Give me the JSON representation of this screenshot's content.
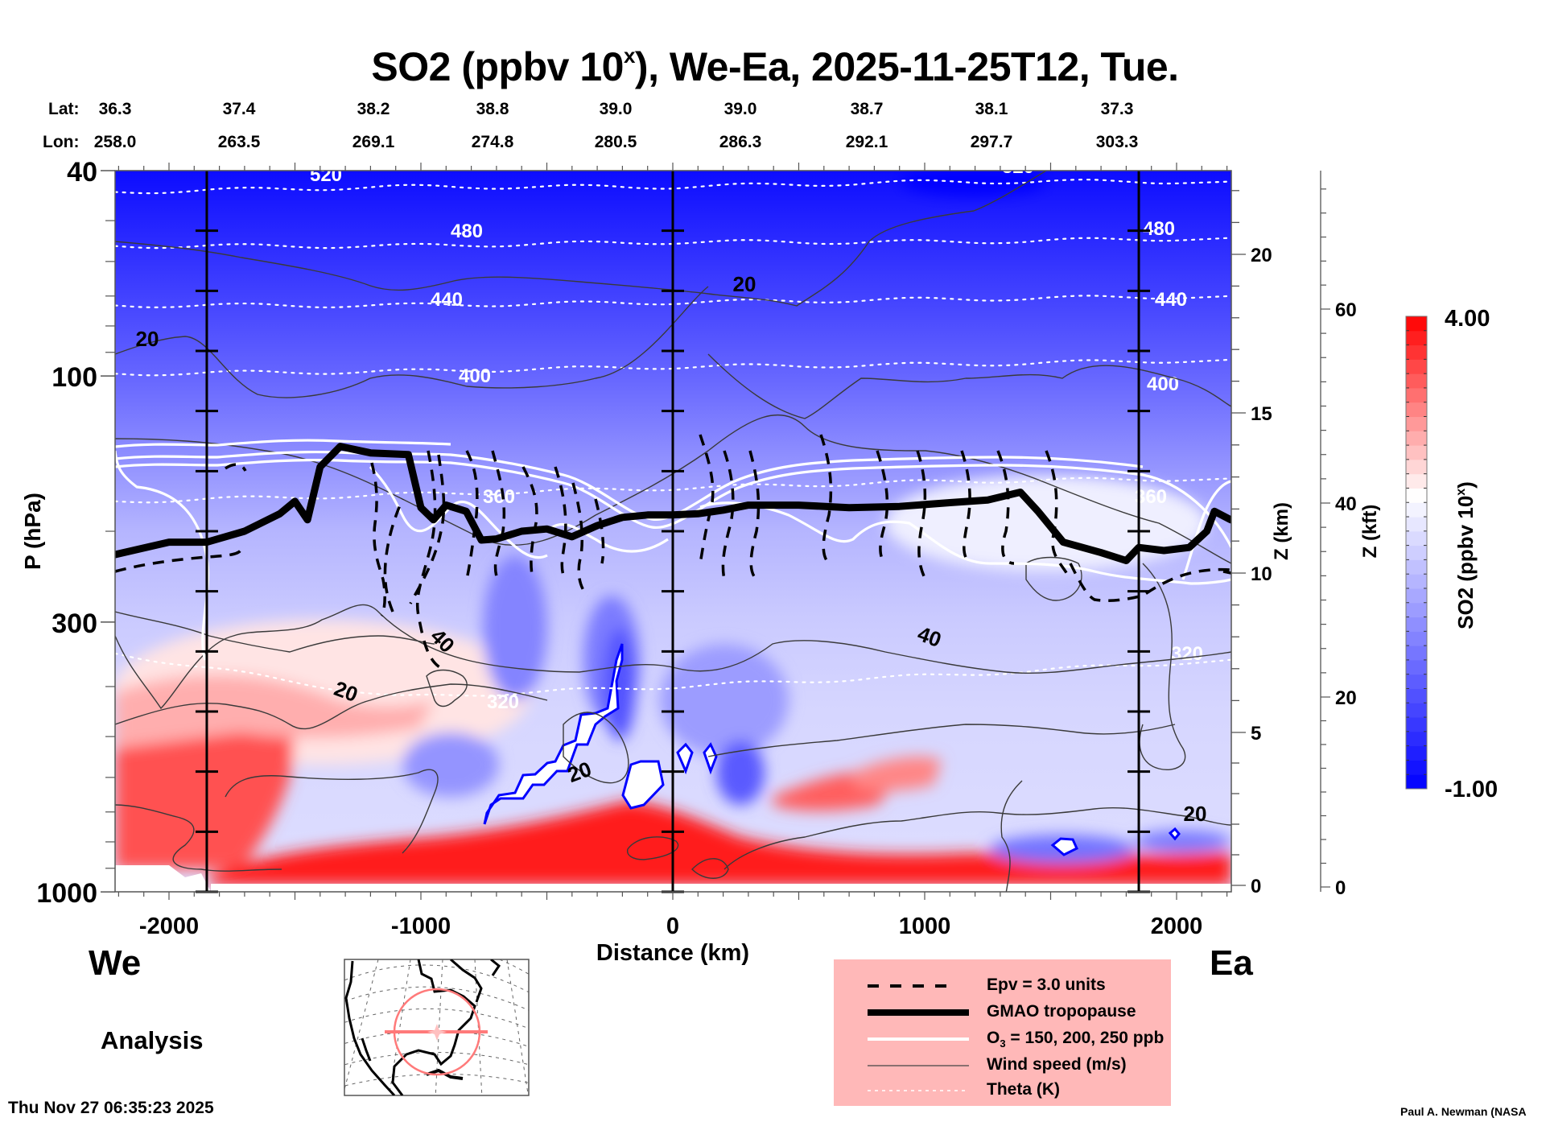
{
  "chart_data": {
    "type": "heatmap",
    "title": "SO2 (ppbv 10",
    "title_sup": "x",
    "title_rest": "), We-Ea, 2025-11-25T12, Tue.",
    "xlabel": "Distance (km)",
    "ylabel": "P (hPa)",
    "y_scale": "log",
    "xlim": [
      -2215,
      2215
    ],
    "ylim": [
      1000,
      40
    ],
    "x_ticks": [
      -2000,
      -1000,
      0,
      1000,
      2000
    ],
    "x_tick_labels": [
      "-2000",
      "-1000",
      "0",
      "1000",
      "2000"
    ],
    "y_ticks": [
      40,
      100,
      300,
      1000
    ],
    "y_tick_labels": [
      "40",
      "100",
      "300",
      "1000"
    ],
    "secondary_y_km": {
      "label": "Z (km)",
      "ticks": [
        0,
        5,
        10,
        15,
        20
      ],
      "tick_labels": [
        "0",
        "5",
        "10",
        "15",
        "20"
      ]
    },
    "secondary_y_kft": {
      "label": "Z (kft)",
      "ticks": [
        0,
        20,
        40,
        60
      ],
      "tick_labels": [
        "0",
        "20",
        "40",
        "60"
      ]
    },
    "lat_row": {
      "label": "Lat:",
      "values": [
        "36.3",
        "37.4",
        "38.2",
        "38.8",
        "39.0",
        "39.0",
        "38.7",
        "38.1",
        "37.3"
      ]
    },
    "lon_row": {
      "label": "Lon:",
      "values": [
        "258.0",
        "263.5",
        "269.1",
        "274.8",
        "280.5",
        "286.3",
        "292.1",
        "297.7",
        "303.3"
      ]
    },
    "vertical_markers_km": [
      -1850,
      0,
      1850
    ],
    "colorbar": {
      "label": "SO2 (ppbv 10",
      "label_sup": "x",
      "label_end": ")",
      "min": -1.0,
      "max": 4.0,
      "min_label": "-1.00",
      "max_label": "4.00",
      "levels": 33
    },
    "theta_contours": [
      {
        "value": 520,
        "label": "520",
        "p": [
          44,
          43,
          43,
          42,
          42
        ]
      },
      {
        "value": 480,
        "label": "480",
        "p": [
          56,
          56,
          55,
          55,
          54
        ]
      },
      {
        "value": 440,
        "label": "440",
        "p": [
          73,
          73,
          72,
          71,
          70
        ]
      },
      {
        "value": 400,
        "label": "400",
        "p": [
          99,
          98,
          96,
          95,
          93
        ]
      },
      {
        "value": 360,
        "label": "360",
        "p": [
          175,
          170,
          165,
          160,
          158
        ]
      },
      {
        "value": 320,
        "label": "320",
        "p": [
          345,
          420,
          400,
          380,
          355
        ]
      }
    ],
    "tropopause_pressure_hPa": [
      [
        -2215,
        222
      ],
      [
        -2000,
        210
      ],
      [
        -1850,
        210
      ],
      [
        -1700,
        200
      ],
      [
        -1560,
        185
      ],
      [
        -1500,
        175
      ],
      [
        -1450,
        190
      ],
      [
        -1400,
        150
      ],
      [
        -1320,
        137
      ],
      [
        -1200,
        141
      ],
      [
        -1050,
        142
      ],
      [
        -1000,
        180
      ],
      [
        -950,
        190
      ],
      [
        -900,
        178
      ],
      [
        -820,
        183
      ],
      [
        -760,
        208
      ],
      [
        -700,
        207
      ],
      [
        -600,
        200
      ],
      [
        -500,
        198
      ],
      [
        -400,
        205
      ],
      [
        -300,
        195
      ],
      [
        -200,
        188
      ],
      [
        -100,
        186
      ],
      [
        0,
        186
      ],
      [
        100,
        185
      ],
      [
        200,
        182
      ],
      [
        300,
        178
      ],
      [
        500,
        178
      ],
      [
        700,
        180
      ],
      [
        900,
        179
      ],
      [
        1100,
        176
      ],
      [
        1250,
        174
      ],
      [
        1380,
        168
      ],
      [
        1450,
        183
      ],
      [
        1550,
        210
      ],
      [
        1700,
        220
      ],
      [
        1800,
        228
      ],
      [
        1850,
        215
      ],
      [
        1950,
        218
      ],
      [
        2050,
        215
      ],
      [
        2120,
        200
      ],
      [
        2150,
        183
      ],
      [
        2215,
        190
      ]
    ],
    "legend": [
      {
        "style": "dashed",
        "label": "Epv = 3.0 units"
      },
      {
        "style": "thick",
        "label": "GMAO tropopause"
      },
      {
        "style": "white",
        "label_pre": "O",
        "label_sub": "3",
        "label": " = 150, 200, 250 ppb"
      },
      {
        "style": "thin",
        "label": "Wind speed (m/s)"
      },
      {
        "style": "dotted",
        "label": "Theta (K)"
      }
    ],
    "wind_contour_labels": [
      "20",
      "20",
      "20",
      "40",
      "40",
      "20",
      "20"
    ]
  },
  "labels": {
    "west": "We",
    "east": "Ea",
    "analysis": "Analysis",
    "timestamp": "Thu Nov 27 06:35:23 2025",
    "credit": "Paul A. Newman (NASA"
  },
  "colors": {
    "low": "#0000ff",
    "mid": "#ffffff",
    "high": "#ff0000",
    "legend_bg": "#ffb8b8",
    "map_marker": "#ff7a7a"
  }
}
